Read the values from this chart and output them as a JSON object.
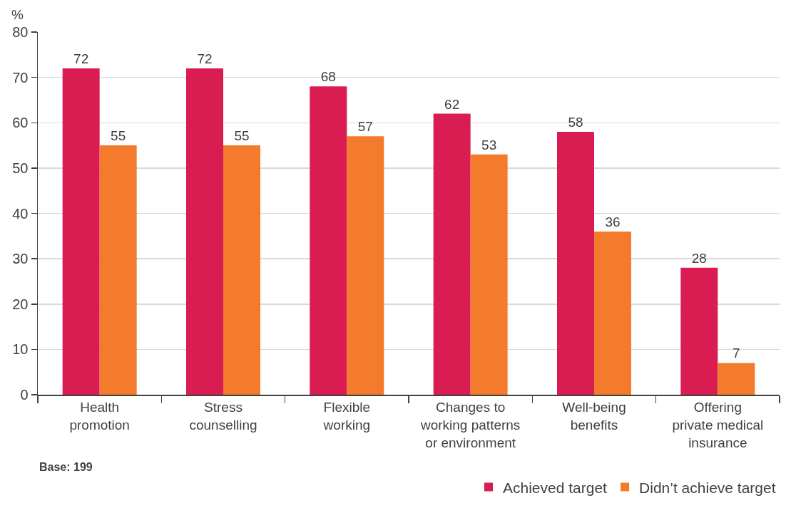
{
  "chart_data": {
    "type": "bar",
    "ylabel": "%",
    "categories": [
      "Health\npromotion",
      "Stress\ncounselling",
      "Flexible\nworking",
      "Changes to\nworking patterns\nor environment",
      "Well-being\nbenefits",
      "Offering\nprivate medical\ninsurance"
    ],
    "series": [
      {
        "name": "Achieved target",
        "color": "#d91c52",
        "values": [
          72,
          72,
          68,
          62,
          58,
          28
        ]
      },
      {
        "name": "Didn’t achieve target",
        "color": "#f47a2c",
        "values": [
          55,
          55,
          57,
          53,
          36,
          7
        ]
      }
    ],
    "ylim": [
      0,
      80
    ],
    "yticks": [
      0,
      10,
      20,
      30,
      40,
      50,
      60,
      70,
      80
    ],
    "grid": "y",
    "data_labels": true,
    "legend": "bottom right",
    "annotations": [
      "Base: 199"
    ]
  }
}
